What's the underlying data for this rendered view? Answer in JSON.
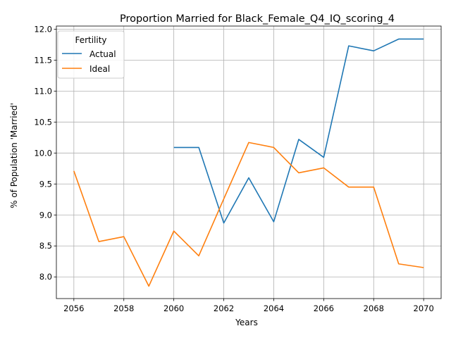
{
  "chart_data": {
    "type": "line",
    "title": "Proportion Married for Black_Female_Q4_IQ_scoring_4",
    "xlabel": "Years",
    "ylabel": "% of Population 'Married'",
    "xlim": [
      2055.3,
      2070.7
    ],
    "ylim": [
      7.65,
      12.05
    ],
    "xticks": [
      2056,
      2058,
      2060,
      2062,
      2064,
      2066,
      2068,
      2070
    ],
    "yticks": [
      8.0,
      8.5,
      9.0,
      9.5,
      10.0,
      10.5,
      11.0,
      11.5,
      12.0
    ],
    "xtick_labels": [
      "2056",
      "2058",
      "2060",
      "2062",
      "2064",
      "2066",
      "2068",
      "2070"
    ],
    "ytick_labels": [
      "8.0",
      "8.5",
      "9.0",
      "9.5",
      "10.0",
      "10.5",
      "11.0",
      "11.5",
      "12.0"
    ],
    "grid": true,
    "legend": {
      "title": "Fertility",
      "placement": "upper-left"
    },
    "series": [
      {
        "name": "Actual",
        "color": "#1f77b4",
        "x": [
          2060,
          2061,
          2062,
          2063,
          2064,
          2065,
          2066,
          2067,
          2068,
          2069,
          2070
        ],
        "values": [
          10.09,
          10.09,
          8.87,
          9.6,
          8.89,
          10.22,
          9.93,
          11.73,
          11.65,
          11.84,
          11.84
        ]
      },
      {
        "name": "Ideal",
        "color": "#ff7f0e",
        "x": [
          2056,
          2057,
          2058,
          2059,
          2060,
          2061,
          2062,
          2063,
          2064,
          2065,
          2066,
          2067,
          2068,
          2069,
          2070
        ],
        "values": [
          9.71,
          8.57,
          8.65,
          7.85,
          8.74,
          8.34,
          9.26,
          10.17,
          10.09,
          9.68,
          9.76,
          9.45,
          9.45,
          8.21,
          8.15
        ]
      }
    ]
  }
}
